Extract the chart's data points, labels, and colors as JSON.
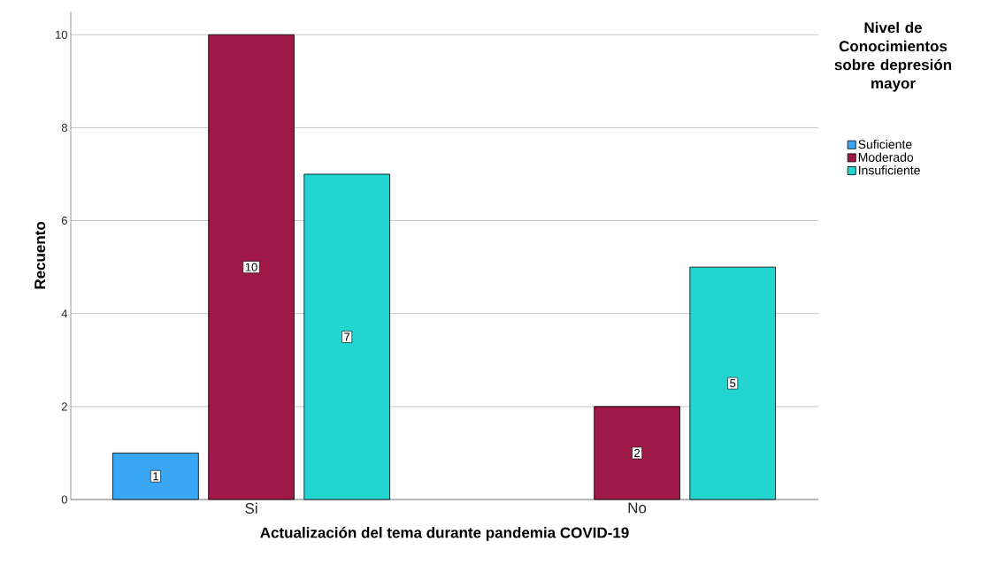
{
  "chart_data": {
    "type": "bar",
    "xlabel": "Actualización del tema durante pandemia COVID-19",
    "ylabel": "Recuento",
    "legend_title": "Nivel de Conocimientos sobre depresión mayor",
    "categories": [
      "Si",
      "No"
    ],
    "series": [
      {
        "name": "Suficiente",
        "color": "#3aa7f5",
        "values": [
          1,
          null
        ]
      },
      {
        "name": "Moderado",
        "color": "#9e1848",
        "values": [
          10,
          2
        ]
      },
      {
        "name": "Insuficiente",
        "color": "#22d5d1",
        "values": [
          7,
          5
        ]
      }
    ],
    "ylim": [
      0,
      10.5
    ],
    "yticks": [
      0,
      2,
      4,
      6,
      8,
      10
    ],
    "grid": "y",
    "legend": "right",
    "data_labels": true
  }
}
